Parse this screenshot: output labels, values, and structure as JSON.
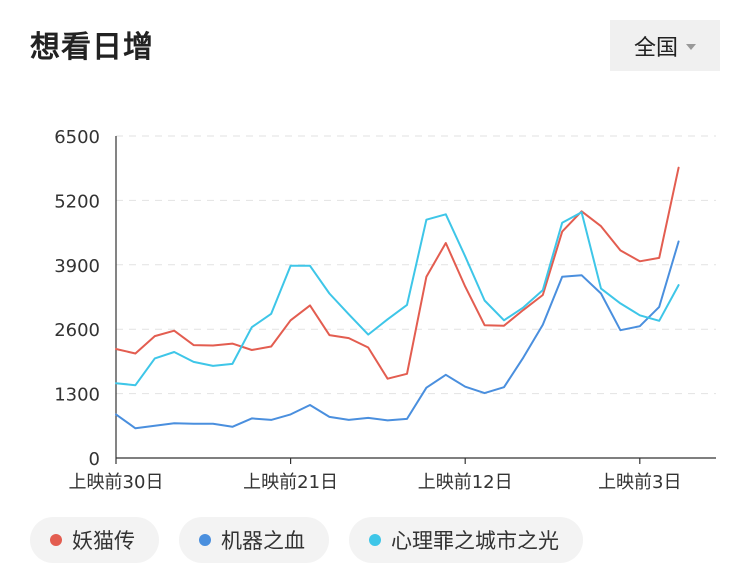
{
  "header": {
    "title": "想看日增"
  },
  "region": {
    "selected": "全国"
  },
  "chart_data": {
    "type": "line",
    "title": "想看日增",
    "ylim": [
      0,
      6500
    ],
    "yticks": [
      0,
      1300,
      2600,
      3900,
      5200,
      6500
    ],
    "x_tick_labels": [
      {
        "index": 0,
        "label": "上映前30日"
      },
      {
        "index": 9,
        "label": "上映前21日"
      },
      {
        "index": 18,
        "label": "上映前12日"
      },
      {
        "index": 27,
        "label": "上映前3日"
      }
    ],
    "grid": true,
    "legend_position": "bottom",
    "series": [
      {
        "name": "妖猫传",
        "color": "#e35d50",
        "values": [
          2200,
          2110,
          2460,
          2570,
          2280,
          2270,
          2310,
          2180,
          2250,
          2780,
          3080,
          2480,
          2420,
          2230,
          1600,
          1700,
          3660,
          4340,
          3460,
          2680,
          2670,
          2990,
          3290,
          4570,
          4980,
          4680,
          4190,
          3970,
          4040,
          5860
        ]
      },
      {
        "name": "机器之血",
        "color": "#4a8fde",
        "values": [
          880,
          600,
          650,
          700,
          690,
          690,
          630,
          800,
          770,
          880,
          1070,
          830,
          770,
          810,
          760,
          790,
          1420,
          1680,
          1440,
          1310,
          1430,
          2030,
          2690,
          3660,
          3690,
          3320,
          2580,
          2660,
          3050,
          4370
        ]
      },
      {
        "name": "心理罪之城市之光",
        "color": "#3ec6e8",
        "values": [
          1510,
          1470,
          2010,
          2140,
          1940,
          1860,
          1900,
          2640,
          2910,
          3880,
          3880,
          3320,
          2900,
          2490,
          2800,
          3090,
          4810,
          4920,
          4070,
          3180,
          2780,
          3040,
          3390,
          4750,
          4960,
          3420,
          3120,
          2880,
          2770,
          3490
        ]
      }
    ]
  }
}
